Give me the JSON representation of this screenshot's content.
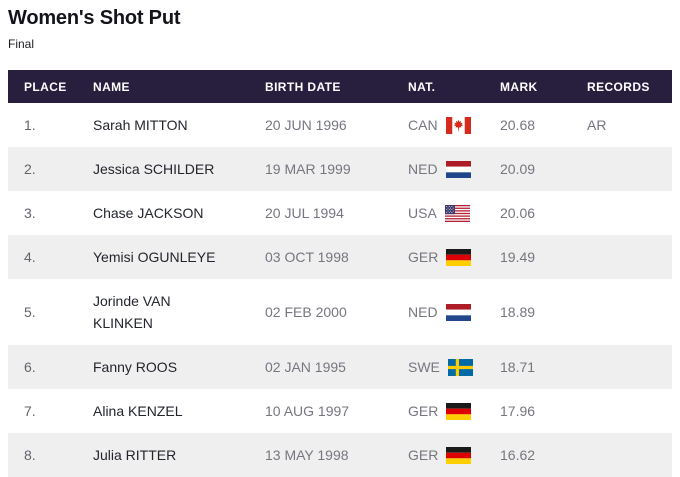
{
  "page": {
    "title": "Women's Shot Put",
    "subtitle": "Final"
  },
  "table": {
    "columns": [
      "PLACE",
      "NAME",
      "BIRTH DATE",
      "NAT.",
      "MARK",
      "RECORDS"
    ],
    "rows": [
      {
        "place": "1.",
        "name": "Sarah MITTON",
        "birth_date": "20 JUN 1996",
        "nat": "CAN",
        "flag_icon": "flag-can-icon",
        "mark": "20.68",
        "records": "AR"
      },
      {
        "place": "2.",
        "name": "Jessica SCHILDER",
        "birth_date": "19 MAR 1999",
        "nat": "NED",
        "flag_icon": "flag-ned-icon",
        "mark": "20.09",
        "records": ""
      },
      {
        "place": "3.",
        "name": "Chase JACKSON",
        "birth_date": "20 JUL 1994",
        "nat": "USA",
        "flag_icon": "flag-usa-icon",
        "mark": "20.06",
        "records": ""
      },
      {
        "place": "4.",
        "name": "Yemisi OGUNLEYE",
        "birth_date": "03 OCT 1998",
        "nat": "GER",
        "flag_icon": "flag-ger-icon",
        "mark": "19.49",
        "records": ""
      },
      {
        "place": "5.",
        "name": "Jorinde VAN KLINKEN",
        "birth_date": "02 FEB 2000",
        "nat": "NED",
        "flag_icon": "flag-ned-icon",
        "mark": "18.89",
        "records": ""
      },
      {
        "place": "6.",
        "name": "Fanny ROOS",
        "birth_date": "02 JAN 1995",
        "nat": "SWE",
        "flag_icon": "flag-swe-icon",
        "mark": "18.71",
        "records": ""
      },
      {
        "place": "7.",
        "name": "Alina KENZEL",
        "birth_date": "10 AUG 1997",
        "nat": "GER",
        "flag_icon": "flag-ger-icon",
        "mark": "17.96",
        "records": ""
      },
      {
        "place": "8.",
        "name": "Julia RITTER",
        "birth_date": "13 MAY 1998",
        "nat": "GER",
        "flag_icon": "flag-ger-icon",
        "mark": "16.62",
        "records": ""
      }
    ]
  },
  "colors": {
    "header_bg": "#281f3e",
    "header_text": "#ffffff",
    "row_alt_bg": "#f0efef",
    "name_text": "#23252d",
    "secondary_text": "#75767f"
  }
}
